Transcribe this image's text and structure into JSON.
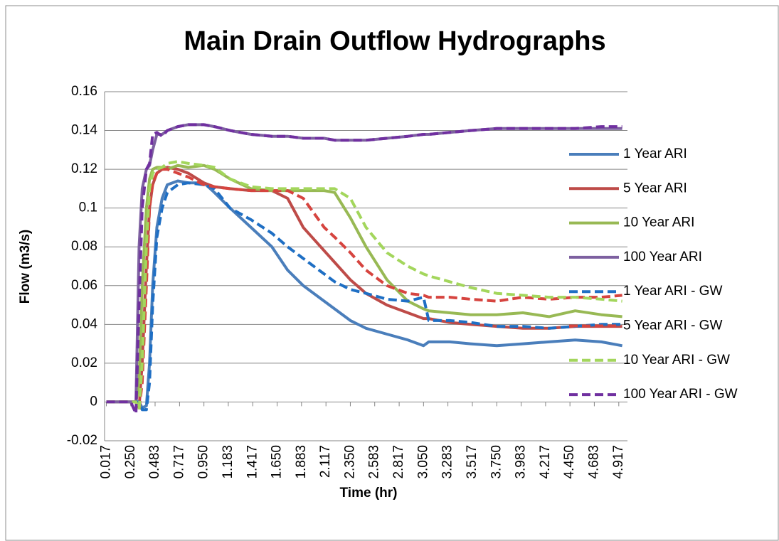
{
  "chart_data": {
    "type": "line",
    "title": "Main Drain Outflow Hydrographs",
    "x_label": "Time (hr)",
    "y_label": "Flow (m3/s)",
    "x": [
      0.017,
      0.25,
      0.3,
      0.33,
      0.36,
      0.4,
      0.43,
      0.46,
      0.5,
      0.55,
      0.6,
      0.7,
      0.8,
      0.95,
      1.05,
      1.2,
      1.4,
      1.6,
      1.75,
      1.9,
      2.1,
      2.2,
      2.35,
      2.5,
      2.7,
      2.9,
      3.05,
      3.1,
      3.3,
      3.5,
      3.75,
      4.0,
      4.25,
      4.5,
      4.75,
      4.95
    ],
    "xlim": [
      0,
      5
    ],
    "xticks": [
      0.017,
      {
        "value": 0.25,
        "label": "0.250"
      },
      0.483,
      0.717,
      {
        "value": 0.95,
        "label": "0.950"
      },
      1.183,
      1.417,
      {
        "value": 1.65,
        "label": "1.650"
      },
      1.883,
      2.117,
      {
        "value": 2.35,
        "label": "2.350"
      },
      2.583,
      2.817,
      {
        "value": 3.05,
        "label": "3.050"
      },
      3.283,
      3.517,
      {
        "value": 3.75,
        "label": "3.750"
      },
      3.983,
      4.217,
      {
        "value": 4.45,
        "label": "4.450"
      },
      4.683,
      4.917
    ],
    "ylim": [
      -0.02,
      0.16
    ],
    "yticks": [
      -0.02,
      0,
      0.02,
      0.04,
      0.06,
      0.08,
      0.1,
      0.12,
      0.14,
      0.16
    ],
    "grid": true,
    "legend": "right",
    "series": [
      {
        "name": "1 Year ARI",
        "color": "#4a7ebb",
        "dash": false,
        "values": [
          0,
          0,
          0,
          0,
          -0.003,
          -0.002,
          0.02,
          0.06,
          0.09,
          0.105,
          0.112,
          0.114,
          0.113,
          0.113,
          0.108,
          0.1,
          0.09,
          0.08,
          0.068,
          0.06,
          0.052,
          0.048,
          0.042,
          0.038,
          0.035,
          0.032,
          0.029,
          0.031,
          0.031,
          0.03,
          0.029,
          0.03,
          0.031,
          0.032,
          0.031,
          0.029
        ]
      },
      {
        "name": "5 Year ARI",
        "color": "#be4b48",
        "dash": false,
        "values": [
          0,
          0,
          0,
          -0.003,
          0.02,
          0.07,
          0.1,
          0.112,
          0.118,
          0.12,
          0.121,
          0.12,
          0.118,
          0.113,
          0.111,
          0.11,
          0.109,
          0.109,
          0.105,
          0.09,
          0.078,
          0.072,
          0.063,
          0.056,
          0.05,
          0.046,
          0.043,
          0.043,
          0.041,
          0.04,
          0.039,
          0.038,
          0.038,
          0.039,
          0.039,
          0.039
        ]
      },
      {
        "name": "10 Year ARI",
        "color": "#98b954",
        "dash": false,
        "values": [
          0,
          0,
          0,
          0.01,
          0.06,
          0.1,
          0.115,
          0.12,
          0.121,
          0.121,
          0.12,
          0.122,
          0.121,
          0.122,
          0.12,
          0.115,
          0.11,
          0.109,
          0.109,
          0.109,
          0.109,
          0.108,
          0.095,
          0.08,
          0.063,
          0.052,
          0.048,
          0.047,
          0.046,
          0.045,
          0.045,
          0.046,
          0.044,
          0.047,
          0.045,
          0.044
        ]
      },
      {
        "name": "100 Year ARI",
        "color": "#7d60a0",
        "dash": false,
        "values": [
          0,
          0,
          0,
          0.08,
          0.11,
          0.12,
          0.122,
          0.13,
          0.138,
          0.138,
          0.14,
          0.142,
          0.143,
          0.143,
          0.142,
          0.14,
          0.138,
          0.137,
          0.137,
          0.136,
          0.136,
          0.135,
          0.135,
          0.135,
          0.136,
          0.137,
          0.138,
          0.138,
          0.139,
          0.14,
          0.141,
          0.141,
          0.141,
          0.141,
          0.141,
          0.141
        ]
      },
      {
        "name": "1 Year ARI - GW",
        "color": "#1f6fc4",
        "dash": true,
        "values": [
          0,
          0,
          0,
          0,
          -0.004,
          -0.004,
          0.01,
          0.05,
          0.085,
          0.1,
          0.108,
          0.112,
          0.113,
          0.112,
          0.11,
          0.1,
          0.094,
          0.087,
          0.08,
          0.074,
          0.066,
          0.062,
          0.058,
          0.056,
          0.053,
          0.052,
          0.054,
          0.042,
          0.042,
          0.041,
          0.039,
          0.039,
          0.038,
          0.039,
          0.04,
          0.04
        ]
      },
      {
        "name": "5 Year ARI - GW",
        "color": "#d6443f",
        "dash": true,
        "values": [
          0,
          0,
          0,
          -0.004,
          0.01,
          0.06,
          0.1,
          0.113,
          0.118,
          0.12,
          0.12,
          0.118,
          0.116,
          0.112,
          0.111,
          0.11,
          0.109,
          0.109,
          0.109,
          0.105,
          0.09,
          0.085,
          0.077,
          0.068,
          0.06,
          0.056,
          0.055,
          0.054,
          0.054,
          0.053,
          0.052,
          0.054,
          0.053,
          0.054,
          0.054,
          0.055
        ]
      },
      {
        "name": "10 Year ARI - GW",
        "color": "#a3d65c",
        "dash": true,
        "values": [
          0,
          0,
          0,
          -0.004,
          0.02,
          0.08,
          0.11,
          0.118,
          0.12,
          0.121,
          0.123,
          0.124,
          0.123,
          0.122,
          0.121,
          0.115,
          0.111,
          0.11,
          0.11,
          0.11,
          0.11,
          0.11,
          0.105,
          0.09,
          0.077,
          0.07,
          0.066,
          0.065,
          0.062,
          0.059,
          0.056,
          0.055,
          0.054,
          0.054,
          0.053,
          0.052
        ]
      },
      {
        "name": "100 Year ARI - GW",
        "color": "#7030a0",
        "dash": true,
        "values": [
          0,
          0,
          -0.006,
          0.05,
          0.1,
          0.12,
          0.123,
          0.138,
          0.139,
          0.137,
          0.14,
          0.142,
          0.143,
          0.143,
          0.142,
          0.14,
          0.138,
          0.137,
          0.137,
          0.136,
          0.136,
          0.135,
          0.135,
          0.135,
          0.136,
          0.137,
          0.138,
          0.138,
          0.139,
          0.14,
          0.141,
          0.141,
          0.141,
          0.141,
          0.142,
          0.142
        ]
      }
    ]
  }
}
